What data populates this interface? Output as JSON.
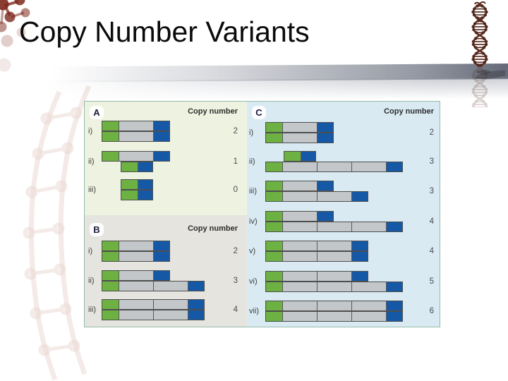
{
  "slide": {
    "title": "Copy Number Variants"
  },
  "figure": {
    "copy_number_header": "Copy number",
    "colors": {
      "segment_green": "#6cb142",
      "segment_gray": "#c3c7ca",
      "segment_blue": "#1559a6",
      "bar_border": "#4e4e4e",
      "panel_a_bg": "#eef3e1",
      "panel_b_bg": "#e5e4df",
      "panel_c_bg": "#d9eaf3",
      "figure_border": "#96bba9",
      "helix_brown": "#5d2c1f",
      "watermark_red": "#7e2a1d"
    },
    "panels": [
      {
        "id": "A",
        "label": "A",
        "rows": [
          {
            "label": "i)",
            "copy_number": "2",
            "bars": [
              [
                "green",
                "gray",
                "blue"
              ],
              [
                "green",
                "gray",
                "blue"
              ]
            ]
          },
          {
            "label": "ii)",
            "copy_number": "1",
            "bars": [
              [
                "green",
                "gray",
                "blue"
              ],
              [
                "green",
                "blue"
              ]
            ]
          },
          {
            "label": "iii)",
            "copy_number": "0",
            "bars": [
              [
                "green",
                "blue"
              ],
              [
                "green",
                "blue"
              ]
            ]
          }
        ]
      },
      {
        "id": "B",
        "label": "B",
        "rows": [
          {
            "label": "i)",
            "copy_number": "2",
            "bars": [
              [
                "green",
                "gray",
                "blue"
              ],
              [
                "green",
                "gray",
                "blue"
              ]
            ]
          },
          {
            "label": "ii)",
            "copy_number": "3",
            "bars": [
              [
                "green",
                "gray",
                "blue"
              ],
              [
                "green",
                "gray",
                "gray",
                "blue"
              ]
            ]
          },
          {
            "label": "iii)",
            "copy_number": "4",
            "bars": [
              [
                "green",
                "gray",
                "gray",
                "blue"
              ],
              [
                "green",
                "gray",
                "gray",
                "blue"
              ]
            ]
          }
        ]
      },
      {
        "id": "C",
        "label": "C",
        "rows": [
          {
            "label": "i)",
            "copy_number": "2",
            "bars": [
              [
                "green",
                "gray",
                "blue"
              ],
              [
                "green",
                "gray",
                "blue"
              ]
            ]
          },
          {
            "label": "ii)",
            "copy_number": "3",
            "bars": [
              [
                "green",
                "blue"
              ],
              [
                "green",
                "gray",
                "gray",
                "gray",
                "blue"
              ]
            ]
          },
          {
            "label": "iii)",
            "copy_number": "3",
            "bars": [
              [
                "green",
                "gray",
                "blue"
              ],
              [
                "green",
                "gray",
                "gray",
                "blue"
              ]
            ]
          },
          {
            "label": "iv)",
            "copy_number": "4",
            "bars": [
              [
                "green",
                "gray",
                "blue"
              ],
              [
                "green",
                "gray",
                "gray",
                "gray",
                "blue"
              ]
            ]
          },
          {
            "label": "v)",
            "copy_number": "4",
            "bars": [
              [
                "green",
                "gray",
                "gray",
                "blue"
              ],
              [
                "green",
                "gray",
                "gray",
                "blue"
              ]
            ]
          },
          {
            "label": "vi)",
            "copy_number": "5",
            "bars": [
              [
                "green",
                "gray",
                "gray",
                "blue"
              ],
              [
                "green",
                "gray",
                "gray",
                "gray",
                "blue"
              ]
            ]
          },
          {
            "label": "vii)",
            "copy_number": "6",
            "bars": [
              [
                "green",
                "gray",
                "gray",
                "gray",
                "blue"
              ],
              [
                "green",
                "gray",
                "gray",
                "gray",
                "blue"
              ]
            ]
          }
        ]
      }
    ]
  },
  "decorations": {
    "right_icon": "dna-double-helix",
    "left_icon": "molecular-chain-watermark"
  }
}
